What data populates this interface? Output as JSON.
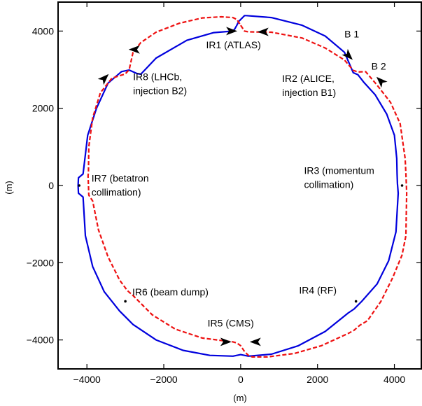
{
  "chart_data": {
    "type": "line",
    "title": "",
    "xlabel": "(m)",
    "ylabel": "(m)",
    "xlim": [
      -4750,
      4700
    ],
    "ylim": [
      -4750,
      4750
    ],
    "grid": false,
    "x_ticks": [
      -4000,
      -2000,
      0,
      2000,
      4000
    ],
    "y_ticks": [
      -4000,
      -2000,
      0,
      2000,
      4000
    ],
    "x_tick_labels": [
      "−4000",
      "−2000",
      "0",
      "2000",
      "4000"
    ],
    "y_tick_labels": [
      "−4000",
      "−2000",
      "0",
      "2000",
      "4000"
    ],
    "colors": {
      "beam1": "#0000dd",
      "beam2": "#ee1111",
      "axes": "#000000"
    },
    "series": [
      {
        "line_style": "solid",
        "color": "#0000dd",
        "x": [
          150,
          800,
          1600,
          2200,
          2700,
          2930,
          3050,
          3200,
          3500,
          3800,
          4000,
          4060,
          4070,
          4080,
          4100,
          4040,
          3850,
          3550,
          3150,
          2950,
          2800,
          2200,
          1500,
          800,
          200,
          100,
          0,
          -100,
          -200,
          -800,
          -1500,
          -2200,
          -2800,
          -2950,
          -3150,
          -3550,
          -3850,
          -4040,
          -4100,
          -4220,
          -4230,
          -4220,
          -4100,
          -3980,
          -3750,
          -3450,
          -3100,
          -2900,
          -2700,
          -2600,
          -2200,
          -1400,
          -700,
          -200,
          -150,
          -100,
          -50,
          0,
          50,
          100,
          150
        ],
        "y": [
          4400,
          4350,
          4150,
          3870,
          3450,
          2920,
          2870,
          2680,
          2350,
          1850,
          1300,
          700,
          300,
          50,
          -200,
          -1200,
          -1950,
          -2550,
          -3000,
          -3200,
          -3300,
          -3780,
          -4150,
          -4370,
          -4420,
          -4400,
          -4380,
          -4400,
          -4420,
          -4400,
          -4270,
          -4000,
          -3600,
          -3450,
          -3250,
          -2750,
          -2100,
          -1300,
          -300,
          -200,
          0,
          200,
          300,
          1300,
          2000,
          2650,
          2950,
          2990,
          2900,
          2880,
          3300,
          3760,
          3960,
          4000,
          4060,
          4150,
          4250,
          4300,
          4350,
          4400,
          4400
        ]
      },
      {
        "line_style": "dashed",
        "color": "#ee1111",
        "x": [
          0,
          100,
          200,
          800,
          1600,
          2200,
          2700,
          2930,
          3050,
          3250,
          3550,
          3900,
          4150,
          4280,
          4300,
          4310,
          4320,
          4300,
          4200,
          3950,
          3650,
          3300,
          3100,
          2950,
          2800,
          2100,
          1400,
          700,
          300,
          200,
          100,
          0,
          -100,
          -200,
          -300,
          -1000,
          -1700,
          -2300,
          -2700,
          -2800,
          -2950,
          -3150,
          -3450,
          -3700,
          -3850,
          -3950,
          -3960,
          -3970,
          -3960,
          -3950,
          -3850,
          -3650,
          -3350,
          -3000,
          -2900,
          -2800,
          -2600,
          -2200,
          -1600,
          -1000,
          -500,
          -200,
          -100,
          0
        ],
        "y": [
          4150,
          4000,
          3980,
          3970,
          3820,
          3560,
          3250,
          2980,
          2940,
          2950,
          2600,
          2150,
          1600,
          700,
          300,
          50,
          -200,
          -1300,
          -1800,
          -2400,
          -3000,
          -3500,
          -3620,
          -3750,
          -3830,
          -4150,
          -4350,
          -4440,
          -4440,
          -4400,
          -4300,
          -4150,
          -4080,
          -4050,
          -4040,
          -3950,
          -3720,
          -3350,
          -2950,
          -2850,
          -2720,
          -2450,
          -1850,
          -1150,
          -400,
          -250,
          0,
          250,
          350,
          1000,
          1750,
          2400,
          2780,
          2890,
          3000,
          3450,
          3700,
          3970,
          4200,
          4340,
          4370,
          4350,
          4300,
          4150
        ]
      }
    ],
    "arrows": [
      {
        "series": 0,
        "x": -250,
        "y": 4000,
        "direction": "right"
      },
      {
        "series": 0,
        "x": 2800,
        "y": 3370,
        "direction": "down-right"
      },
      {
        "series": 0,
        "x": 400,
        "y": -4050,
        "direction": "left"
      },
      {
        "series": 0,
        "x": -3550,
        "y": 2770,
        "direction": "up-right"
      },
      {
        "series": 1,
        "x": 600,
        "y": 3980,
        "direction": "left"
      },
      {
        "series": 1,
        "x": -2750,
        "y": 3520,
        "direction": "left"
      },
      {
        "series": 1,
        "x": -400,
        "y": -4050,
        "direction": "right"
      },
      {
        "series": 1,
        "x": 3650,
        "y": 2700,
        "direction": "up-left"
      }
    ],
    "annotations": [
      {
        "id": "b1",
        "text": "B 1",
        "x": 2700,
        "y": 3830,
        "lines": [
          "B 1"
        ]
      },
      {
        "id": "b2",
        "text": "B 2",
        "x": 3400,
        "y": 3000,
        "lines": [
          "B 2"
        ]
      },
      {
        "id": "ir1",
        "text": "IR1 (ATLAS)",
        "x": -900,
        "y": 3550,
        "lines": [
          "IR1 (ATLAS)"
        ]
      },
      {
        "id": "ir2",
        "text": "IR2 (ALICE, injection B1)",
        "x": 1080,
        "y": 2680,
        "lines": [
          "IR2 (ALICE,",
          "injection B1)"
        ]
      },
      {
        "id": "ir3",
        "text": "IR3 (momentum collimation)",
        "x": 1650,
        "y": 300,
        "lines": [
          "IR3 (momentum",
          "collimation)"
        ]
      },
      {
        "id": "ir4",
        "text": "IR4 (RF)",
        "x": 1520,
        "y": -2800,
        "lines": [
          "IR4 (RF)"
        ]
      },
      {
        "id": "ir5",
        "text": "IR5 (CMS)",
        "x": -860,
        "y": -3650,
        "lines": [
          "IR5 (CMS)"
        ]
      },
      {
        "id": "ir6",
        "text": "IR6 (beam dump)",
        "x": -2820,
        "y": -2850,
        "lines": [
          "IR6 (beam dump)"
        ]
      },
      {
        "id": "ir7",
        "text": "IR7 (betatron collimation)",
        "x": -3880,
        "y": 100,
        "lines": [
          "IR7 (betatron",
          "collimation)"
        ]
      },
      {
        "id": "ir8",
        "text": "IR8 (LHCb, injection B2)",
        "x": -2800,
        "y": 2730,
        "lines": [
          "IR8 (LHCb,",
          "injection B2)"
        ]
      }
    ],
    "points": [
      {
        "x": -4200,
        "y": 0
      },
      {
        "x": 4200,
        "y": 0
      },
      {
        "x": -3000,
        "y": -3000
      },
      {
        "x": 3000,
        "y": -3000
      }
    ]
  }
}
